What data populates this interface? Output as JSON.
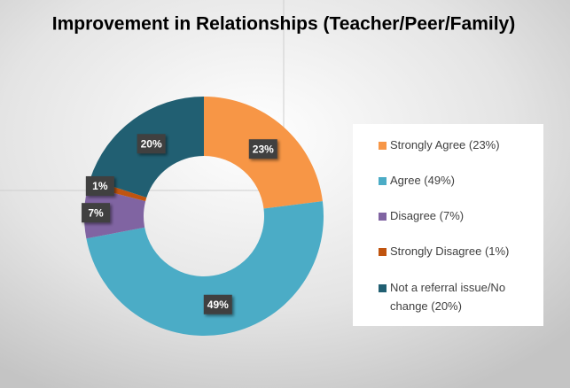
{
  "chart_data": {
    "type": "donut",
    "title": "Improvement in Relationships (Teacher/Peer/Family)",
    "categories": [
      "Strongly Agree (23%)",
      "Agree (49%)",
      "Disagree (7%)",
      "Strongly Disagree (1%)",
      "Not a referral issue/No change (20%)"
    ],
    "values": [
      23,
      49,
      7,
      1,
      20
    ],
    "value_labels": [
      "23%",
      "49%",
      "7%",
      "1%",
      "20%"
    ],
    "colors": [
      "#f79646",
      "#4bacc6",
      "#8064a2",
      "#c0540f",
      "#215f72"
    ],
    "legend": "right"
  }
}
